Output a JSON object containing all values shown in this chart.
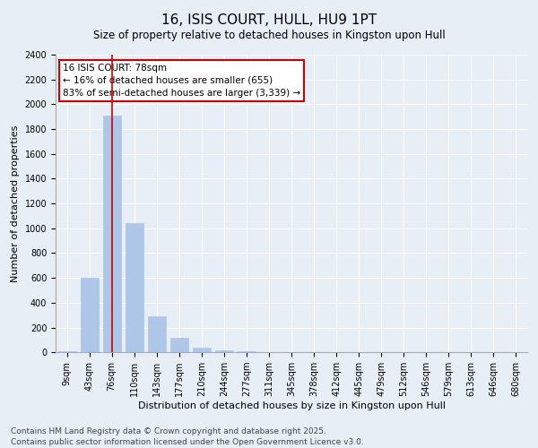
{
  "title": "16, ISIS COURT, HULL, HU9 1PT",
  "subtitle": "Size of property relative to detached houses in Kingston upon Hull",
  "xlabel": "Distribution of detached houses by size in Kingston upon Hull",
  "ylabel": "Number of detached properties",
  "categories": [
    "9sqm",
    "43sqm",
    "76sqm",
    "110sqm",
    "143sqm",
    "177sqm",
    "210sqm",
    "244sqm",
    "277sqm",
    "311sqm",
    "345sqm",
    "378sqm",
    "412sqm",
    "445sqm",
    "479sqm",
    "512sqm",
    "546sqm",
    "579sqm",
    "613sqm",
    "646sqm",
    "680sqm"
  ],
  "values": [
    10,
    600,
    1910,
    1040,
    290,
    115,
    40,
    15,
    8,
    2,
    1,
    0,
    0,
    0,
    0,
    0,
    0,
    0,
    0,
    0,
    0
  ],
  "bar_color": "#aec6e8",
  "bar_edge_color": "#aec6e8",
  "vline_x": 2.0,
  "vline_color": "#cc0000",
  "annotation_line1": "16 ISIS COURT: 78sqm",
  "annotation_line2": "← 16% of detached houses are smaller (655)",
  "annotation_line3": "83% of semi-detached houses are larger (3,339) →",
  "annotation_box_color": "#cc0000",
  "ylim": [
    0,
    2400
  ],
  "yticks": [
    0,
    200,
    400,
    600,
    800,
    1000,
    1200,
    1400,
    1600,
    1800,
    2000,
    2200,
    2400
  ],
  "background_color": "#e8eef5",
  "plot_background": "#e8eef5",
  "footnote1": "Contains HM Land Registry data © Crown copyright and database right 2025.",
  "footnote2": "Contains public sector information licensed under the Open Government Licence v3.0.",
  "title_fontsize": 11,
  "subtitle_fontsize": 8.5,
  "axis_label_fontsize": 8,
  "tick_fontsize": 7,
  "annotation_fontsize": 7.5,
  "footnote_fontsize": 6.5
}
